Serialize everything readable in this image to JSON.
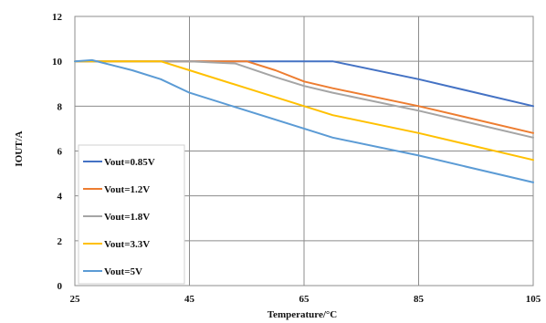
{
  "chart_data": {
    "type": "line",
    "xlabel": "Temperature/°C",
    "ylabel": "IOUT/A",
    "xlim": [
      25,
      105
    ],
    "ylim": [
      0,
      12
    ],
    "x_ticks": [
      25,
      45,
      65,
      85,
      105
    ],
    "y_ticks": [
      0,
      2,
      4,
      6,
      8,
      10,
      12
    ],
    "grid": true,
    "legend_position": "bottom-left",
    "series": [
      {
        "name": "Vout=0.85V",
        "color": "#4472c4",
        "x": [
          25,
          45,
          70,
          85,
          105
        ],
        "values": [
          10,
          10,
          10,
          9.2,
          8.0
        ]
      },
      {
        "name": "Vout=1.2V",
        "color": "#ed7d31",
        "x": [
          25,
          45,
          55,
          60,
          65,
          70,
          85,
          105
        ],
        "values": [
          10,
          10,
          10,
          9.6,
          9.1,
          8.8,
          8.0,
          6.8
        ]
      },
      {
        "name": "Vout=1.8V",
        "color": "#a5a5a5",
        "x": [
          25,
          45,
          53,
          60,
          65,
          70,
          85,
          105
        ],
        "values": [
          10,
          10,
          9.9,
          9.3,
          8.9,
          8.6,
          7.8,
          6.6
        ]
      },
      {
        "name": "Vout=3.3V",
        "color": "#ffc000",
        "x": [
          25,
          40,
          45,
          55,
          65,
          70,
          85,
          105
        ],
        "values": [
          10,
          10,
          9.6,
          8.8,
          8.0,
          7.6,
          6.8,
          5.6
        ]
      },
      {
        "name": "Vout=5V",
        "color": "#5b9bd5",
        "x": [
          25,
          28,
          35,
          40,
          45,
          55,
          65,
          70,
          85,
          105
        ],
        "values": [
          10,
          10.05,
          9.6,
          9.2,
          8.6,
          7.8,
          7.0,
          6.6,
          5.8,
          4.6
        ]
      }
    ]
  }
}
